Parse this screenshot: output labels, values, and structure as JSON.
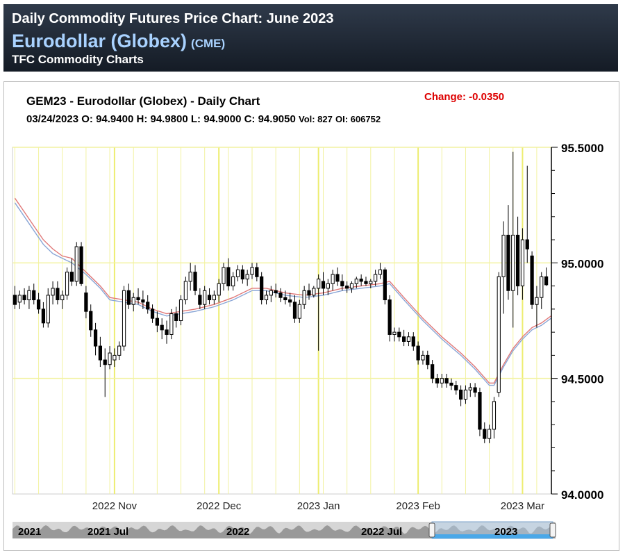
{
  "header": {
    "title": "Daily Commodity Futures Price Chart: June 2023",
    "name": "Eurodollar (Globex)",
    "exchange": "(CME)",
    "subtitle": "TFC Commodity Charts"
  },
  "chart_header": {
    "title": "GEM23 - Eurodollar (Globex) - Daily Chart",
    "change": "Change: -0.0350",
    "date": "03/24/2023",
    "open": "O: 94.9400",
    "high": "H: 94.9800",
    "low": "L: 94.9000",
    "close": "C: 94.9050",
    "volume": "Vol: 827",
    "oi": "OI: 606752"
  },
  "navigator": {
    "labels": [
      "2021",
      "2021 Jul",
      "2022",
      "2022 Jul",
      "2023"
    ]
  },
  "colors": {
    "header_bg": "#1c2430",
    "grid": "#f2f2a0",
    "candle": "#000000",
    "ma_red": "#e07878",
    "ma_blue": "#8aa6d6",
    "ma_purple": "#a07cb8",
    "navigator_fill": "#999999",
    "navigator_select": "#4aa8e8"
  },
  "chart_data": {
    "type": "candlestick",
    "symbol": "GEM23",
    "x_labels": [
      "2022 Nov",
      "2022 Dec",
      "2023 Jan",
      "2023 Feb",
      "2023 Mar"
    ],
    "y_ticks": [
      "95.5000",
      "95.0000",
      "94.5000",
      "94.0000"
    ],
    "ylim": [
      94.0,
      95.5
    ],
    "grid": true,
    "candles": [
      {
        "o": 94.86,
        "h": 94.9,
        "l": 94.8,
        "c": 94.82
      },
      {
        "o": 94.83,
        "h": 94.88,
        "l": 94.8,
        "c": 94.86
      },
      {
        "o": 94.86,
        "h": 94.89,
        "l": 94.82,
        "c": 94.84
      },
      {
        "o": 94.84,
        "h": 94.9,
        "l": 94.8,
        "c": 94.88
      },
      {
        "o": 94.88,
        "h": 94.91,
        "l": 94.82,
        "c": 94.84
      },
      {
        "o": 94.84,
        "h": 94.87,
        "l": 94.78,
        "c": 94.8
      },
      {
        "o": 94.8,
        "h": 94.83,
        "l": 94.72,
        "c": 94.74
      },
      {
        "o": 94.74,
        "h": 94.89,
        "l": 94.72,
        "c": 94.86
      },
      {
        "o": 94.86,
        "h": 94.92,
        "l": 94.82,
        "c": 94.89
      },
      {
        "o": 94.89,
        "h": 94.92,
        "l": 94.82,
        "c": 94.84
      },
      {
        "o": 94.84,
        "h": 94.88,
        "l": 94.8,
        "c": 94.86
      },
      {
        "o": 94.86,
        "h": 94.98,
        "l": 94.84,
        "c": 94.96
      },
      {
        "o": 94.96,
        "h": 95.02,
        "l": 94.9,
        "c": 94.92
      },
      {
        "o": 94.92,
        "h": 95.09,
        "l": 94.9,
        "c": 95.07
      },
      {
        "o": 95.07,
        "h": 95.09,
        "l": 94.9,
        "c": 94.91
      },
      {
        "o": 94.87,
        "h": 94.9,
        "l": 94.76,
        "c": 94.79
      },
      {
        "o": 94.79,
        "h": 94.82,
        "l": 94.68,
        "c": 94.71
      },
      {
        "o": 94.71,
        "h": 94.74,
        "l": 94.6,
        "c": 94.64
      },
      {
        "o": 94.64,
        "h": 94.68,
        "l": 94.55,
        "c": 94.58
      },
      {
        "o": 94.58,
        "h": 94.63,
        "l": 94.42,
        "c": 94.56
      },
      {
        "o": 94.56,
        "h": 94.64,
        "l": 94.54,
        "c": 94.61
      },
      {
        "o": 94.58,
        "h": 94.63,
        "l": 94.55,
        "c": 94.6
      },
      {
        "o": 94.6,
        "h": 94.66,
        "l": 94.58,
        "c": 94.64
      },
      {
        "o": 94.64,
        "h": 94.9,
        "l": 94.62,
        "c": 94.88
      },
      {
        "o": 94.88,
        "h": 94.91,
        "l": 94.8,
        "c": 94.82
      },
      {
        "o": 94.82,
        "h": 94.87,
        "l": 94.79,
        "c": 94.85
      },
      {
        "o": 94.85,
        "h": 94.89,
        "l": 94.82,
        "c": 94.84
      },
      {
        "o": 94.84,
        "h": 94.88,
        "l": 94.8,
        "c": 94.83
      },
      {
        "o": 94.83,
        "h": 94.86,
        "l": 94.78,
        "c": 94.8
      },
      {
        "o": 94.8,
        "h": 94.82,
        "l": 94.74,
        "c": 94.76
      },
      {
        "o": 94.76,
        "h": 94.79,
        "l": 94.7,
        "c": 94.73
      },
      {
        "o": 94.73,
        "h": 94.76,
        "l": 94.67,
        "c": 94.71
      },
      {
        "o": 94.71,
        "h": 94.75,
        "l": 94.65,
        "c": 94.69
      },
      {
        "o": 94.69,
        "h": 94.8,
        "l": 94.67,
        "c": 94.78
      },
      {
        "o": 94.78,
        "h": 94.81,
        "l": 94.72,
        "c": 94.75
      },
      {
        "o": 94.75,
        "h": 94.86,
        "l": 94.73,
        "c": 94.84
      },
      {
        "o": 94.84,
        "h": 94.94,
        "l": 94.82,
        "c": 94.92
      },
      {
        "o": 94.92,
        "h": 95.0,
        "l": 94.88,
        "c": 94.96
      },
      {
        "o": 94.96,
        "h": 94.99,
        "l": 94.86,
        "c": 94.88
      },
      {
        "o": 94.86,
        "h": 94.89,
        "l": 94.8,
        "c": 94.82
      },
      {
        "o": 94.82,
        "h": 94.9,
        "l": 94.8,
        "c": 94.88
      },
      {
        "o": 94.86,
        "h": 94.89,
        "l": 94.82,
        "c": 94.84
      },
      {
        "o": 94.84,
        "h": 94.88,
        "l": 94.82,
        "c": 94.86
      },
      {
        "o": 94.86,
        "h": 94.93,
        "l": 94.83,
        "c": 94.91
      },
      {
        "o": 94.91,
        "h": 95.0,
        "l": 94.88,
        "c": 94.98
      },
      {
        "o": 94.98,
        "h": 95.02,
        "l": 94.88,
        "c": 94.9
      },
      {
        "o": 94.9,
        "h": 94.96,
        "l": 94.88,
        "c": 94.94
      },
      {
        "o": 94.94,
        "h": 94.99,
        "l": 94.92,
        "c": 94.97
      },
      {
        "o": 94.97,
        "h": 94.99,
        "l": 94.91,
        "c": 94.93
      },
      {
        "o": 94.93,
        "h": 94.97,
        "l": 94.9,
        "c": 94.95
      },
      {
        "o": 94.95,
        "h": 95.0,
        "l": 94.93,
        "c": 94.98
      },
      {
        "o": 94.98,
        "h": 95.0,
        "l": 94.92,
        "c": 94.94
      },
      {
        "o": 94.94,
        "h": 94.96,
        "l": 94.82,
        "c": 94.84
      },
      {
        "o": 94.84,
        "h": 94.88,
        "l": 94.82,
        "c": 94.86
      },
      {
        "o": 94.86,
        "h": 94.9,
        "l": 94.83,
        "c": 94.88
      },
      {
        "o": 94.88,
        "h": 94.91,
        "l": 94.85,
        "c": 94.87
      },
      {
        "o": 94.87,
        "h": 94.89,
        "l": 94.83,
        "c": 94.85
      },
      {
        "o": 94.85,
        "h": 94.88,
        "l": 94.82,
        "c": 94.84
      },
      {
        "o": 94.84,
        "h": 94.87,
        "l": 94.81,
        "c": 94.83
      },
      {
        "o": 94.83,
        "h": 94.86,
        "l": 94.74,
        "c": 94.76
      },
      {
        "o": 94.76,
        "h": 94.84,
        "l": 94.74,
        "c": 94.82
      },
      {
        "o": 94.82,
        "h": 94.9,
        "l": 94.8,
        "c": 94.88
      },
      {
        "o": 94.88,
        "h": 94.91,
        "l": 94.84,
        "c": 94.86
      },
      {
        "o": 94.86,
        "h": 94.9,
        "l": 94.85,
        "c": 94.89
      },
      {
        "o": 94.89,
        "h": 94.95,
        "l": 94.62,
        "c": 94.93
      },
      {
        "o": 94.92,
        "h": 94.96,
        "l": 94.86,
        "c": 94.89
      },
      {
        "o": 94.89,
        "h": 94.93,
        "l": 94.86,
        "c": 94.91
      },
      {
        "o": 94.91,
        "h": 94.97,
        "l": 94.88,
        "c": 94.95
      },
      {
        "o": 94.95,
        "h": 94.98,
        "l": 94.9,
        "c": 94.92
      },
      {
        "o": 94.92,
        "h": 94.95,
        "l": 94.88,
        "c": 94.9
      },
      {
        "o": 94.9,
        "h": 94.92,
        "l": 94.87,
        "c": 94.89
      },
      {
        "o": 94.89,
        "h": 94.92,
        "l": 94.87,
        "c": 94.91
      },
      {
        "o": 94.91,
        "h": 94.94,
        "l": 94.89,
        "c": 94.93
      },
      {
        "o": 94.93,
        "h": 94.95,
        "l": 94.9,
        "c": 94.92
      },
      {
        "o": 94.92,
        "h": 94.94,
        "l": 94.9,
        "c": 94.91
      },
      {
        "o": 94.91,
        "h": 94.93,
        "l": 94.89,
        "c": 94.92
      },
      {
        "o": 94.92,
        "h": 94.97,
        "l": 94.9,
        "c": 94.95
      },
      {
        "o": 94.95,
        "h": 95.0,
        "l": 94.93,
        "c": 94.97
      },
      {
        "o": 94.97,
        "h": 94.98,
        "l": 94.82,
        "c": 94.84
      },
      {
        "o": 94.84,
        "h": 94.86,
        "l": 94.66,
        "c": 94.69
      },
      {
        "o": 94.69,
        "h": 94.72,
        "l": 94.66,
        "c": 94.7
      },
      {
        "o": 94.7,
        "h": 94.72,
        "l": 94.66,
        "c": 94.68
      },
      {
        "o": 94.68,
        "h": 94.71,
        "l": 94.64,
        "c": 94.66
      },
      {
        "o": 94.66,
        "h": 94.7,
        "l": 94.64,
        "c": 94.68
      },
      {
        "o": 94.68,
        "h": 94.7,
        "l": 94.62,
        "c": 94.64
      },
      {
        "o": 94.64,
        "h": 94.66,
        "l": 94.56,
        "c": 94.58
      },
      {
        "o": 94.58,
        "h": 94.62,
        "l": 94.56,
        "c": 94.6
      },
      {
        "o": 94.6,
        "h": 94.62,
        "l": 94.54,
        "c": 94.56
      },
      {
        "o": 94.56,
        "h": 94.58,
        "l": 94.48,
        "c": 94.5
      },
      {
        "o": 94.5,
        "h": 94.52,
        "l": 94.46,
        "c": 94.48
      },
      {
        "o": 94.48,
        "h": 94.52,
        "l": 94.46,
        "c": 94.5
      },
      {
        "o": 94.5,
        "h": 94.52,
        "l": 94.46,
        "c": 94.48
      },
      {
        "o": 94.48,
        "h": 94.5,
        "l": 94.45,
        "c": 94.47
      },
      {
        "o": 94.47,
        "h": 94.49,
        "l": 94.43,
        "c": 94.45
      },
      {
        "o": 94.45,
        "h": 94.47,
        "l": 94.38,
        "c": 94.41
      },
      {
        "o": 94.41,
        "h": 94.47,
        "l": 94.39,
        "c": 94.45
      },
      {
        "o": 94.45,
        "h": 94.48,
        "l": 94.42,
        "c": 94.46
      },
      {
        "o": 94.46,
        "h": 94.48,
        "l": 94.42,
        "c": 94.44
      },
      {
        "o": 94.44,
        "h": 94.46,
        "l": 94.25,
        "c": 94.28
      },
      {
        "o": 94.28,
        "h": 94.31,
        "l": 94.22,
        "c": 94.24
      },
      {
        "o": 94.24,
        "h": 94.3,
        "l": 94.22,
        "c": 94.28
      },
      {
        "o": 94.28,
        "h": 94.42,
        "l": 94.24,
        "c": 94.4
      },
      {
        "o": 94.44,
        "h": 94.96,
        "l": 94.42,
        "c": 94.94
      },
      {
        "o": 94.94,
        "h": 95.18,
        "l": 94.78,
        "c": 95.12
      },
      {
        "o": 95.12,
        "h": 95.25,
        "l": 94.84,
        "c": 94.88
      },
      {
        "o": 94.88,
        "h": 95.48,
        "l": 94.72,
        "c": 95.12
      },
      {
        "o": 95.12,
        "h": 95.2,
        "l": 94.86,
        "c": 94.9
      },
      {
        "o": 94.9,
        "h": 95.15,
        "l": 94.84,
        "c": 95.1
      },
      {
        "o": 95.1,
        "h": 95.42,
        "l": 95.0,
        "c": 95.06
      },
      {
        "o": 95.03,
        "h": 95.05,
        "l": 94.8,
        "c": 94.82
      },
      {
        "o": 94.82,
        "h": 94.9,
        "l": 94.72,
        "c": 94.85
      },
      {
        "o": 94.85,
        "h": 94.96,
        "l": 94.8,
        "c": 94.94
      },
      {
        "o": 94.94,
        "h": 94.98,
        "l": 94.9,
        "c": 94.905
      }
    ],
    "moving_averages": [
      {
        "name": "MA-red",
        "color": "#e07878",
        "values": [
          [
            0,
            95.28
          ],
          [
            2,
            95.22
          ],
          [
            4,
            95.16
          ],
          [
            6,
            95.1
          ],
          [
            8,
            95.06
          ],
          [
            10,
            95.03
          ],
          [
            12,
            95.02
          ],
          [
            15,
            94.96
          ],
          [
            18,
            94.9
          ],
          [
            20,
            94.85
          ],
          [
            23,
            94.84
          ],
          [
            26,
            94.83
          ],
          [
            29,
            94.8
          ],
          [
            32,
            94.78
          ],
          [
            35,
            94.79
          ],
          [
            38,
            94.8
          ],
          [
            42,
            94.82
          ],
          [
            46,
            94.85
          ],
          [
            50,
            94.89
          ],
          [
            53,
            94.89
          ],
          [
            57,
            94.87
          ],
          [
            61,
            94.86
          ],
          [
            65,
            94.87
          ],
          [
            69,
            94.89
          ],
          [
            73,
            94.9
          ],
          [
            77,
            94.91
          ],
          [
            79,
            94.92
          ],
          [
            82,
            94.85
          ],
          [
            86,
            94.76
          ],
          [
            90,
            94.68
          ],
          [
            94,
            94.61
          ],
          [
            97,
            94.55
          ],
          [
            100,
            94.48
          ],
          [
            101,
            94.48
          ],
          [
            103,
            94.56
          ],
          [
            105,
            94.63
          ],
          [
            107,
            94.68
          ],
          [
            109,
            94.72
          ],
          [
            111,
            94.74
          ],
          [
            113,
            94.77
          ]
        ]
      },
      {
        "name": "MA-blue",
        "color": "#8aa6d6",
        "values": [
          [
            0,
            95.26
          ],
          [
            2,
            95.2
          ],
          [
            4,
            95.14
          ],
          [
            6,
            95.08
          ],
          [
            8,
            95.04
          ],
          [
            10,
            95.02
          ],
          [
            12,
            95.0
          ],
          [
            15,
            94.95
          ],
          [
            18,
            94.89
          ],
          [
            20,
            94.84
          ],
          [
            23,
            94.83
          ],
          [
            26,
            94.82
          ],
          [
            29,
            94.79
          ],
          [
            32,
            94.77
          ],
          [
            35,
            94.78
          ],
          [
            38,
            94.79
          ],
          [
            42,
            94.81
          ],
          [
            46,
            94.84
          ],
          [
            50,
            94.88
          ],
          [
            53,
            94.88
          ],
          [
            57,
            94.86
          ],
          [
            61,
            94.85
          ],
          [
            65,
            94.86
          ],
          [
            69,
            94.88
          ],
          [
            73,
            94.89
          ],
          [
            77,
            94.9
          ],
          [
            79,
            94.91
          ],
          [
            82,
            94.84
          ],
          [
            86,
            94.75
          ],
          [
            90,
            94.67
          ],
          [
            94,
            94.6
          ],
          [
            97,
            94.54
          ],
          [
            100,
            94.47
          ],
          [
            101,
            94.47
          ],
          [
            103,
            94.55
          ],
          [
            105,
            94.62
          ],
          [
            107,
            94.67
          ],
          [
            109,
            94.71
          ],
          [
            111,
            94.73
          ],
          [
            113,
            94.76
          ]
        ]
      }
    ]
  }
}
